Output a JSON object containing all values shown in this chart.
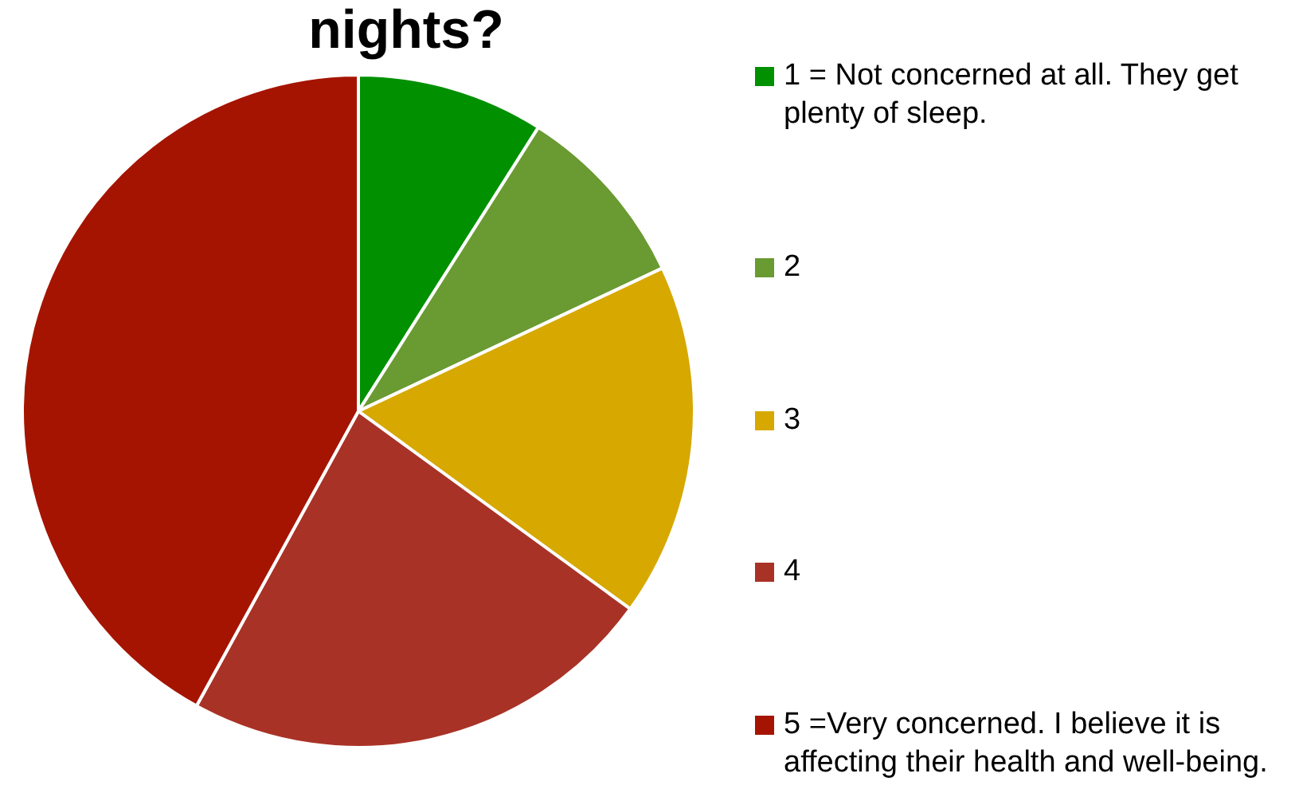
{
  "chart_data": {
    "type": "pie",
    "title": "nights?",
    "categories": [
      "1 = Not concerned at all. They get plenty of sleep.",
      "2",
      "3",
      "4",
      "5 =Very concerned. I believe it is affecting their health and well-being."
    ],
    "values": [
      9,
      9,
      17,
      23,
      42
    ],
    "colors": [
      "#009000",
      "#6a9a32",
      "#d6a800",
      "#a93226",
      "#a51400"
    ],
    "legend": "right"
  }
}
